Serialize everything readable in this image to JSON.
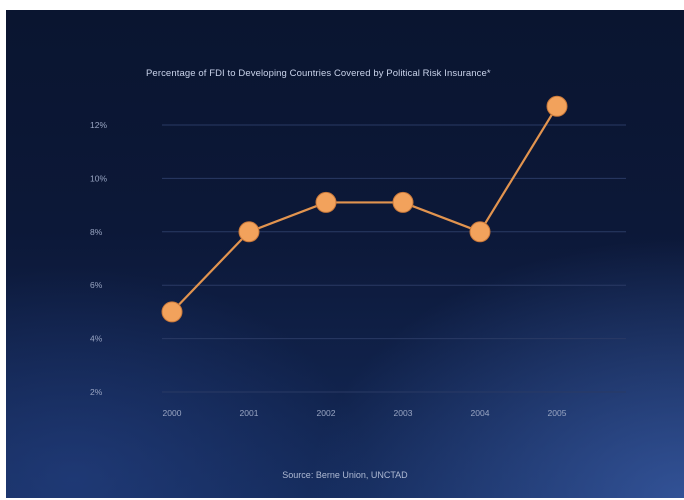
{
  "chart_data": {
    "type": "line",
    "title": "Percentage of FDI to Developing Countries Covered by Political Risk Insurance*",
    "source": "Source: Berne Union, UNCTAD",
    "x": [
      "2000",
      "2001",
      "2002",
      "2003",
      "2004",
      "2005"
    ],
    "series": [
      {
        "values": [
          5.0,
          8.0,
          9.1,
          9.1,
          8.0,
          12.7
        ]
      }
    ],
    "yticks": [
      "2%",
      "4%",
      "6%",
      "8%",
      "10%",
      "12%"
    ],
    "ylim": [
      2,
      12
    ],
    "grid": true,
    "colors": {
      "line": "#e2944f",
      "marker": "#f2a25c",
      "grid": "#2a3a64",
      "background": "#0c1838"
    }
  }
}
